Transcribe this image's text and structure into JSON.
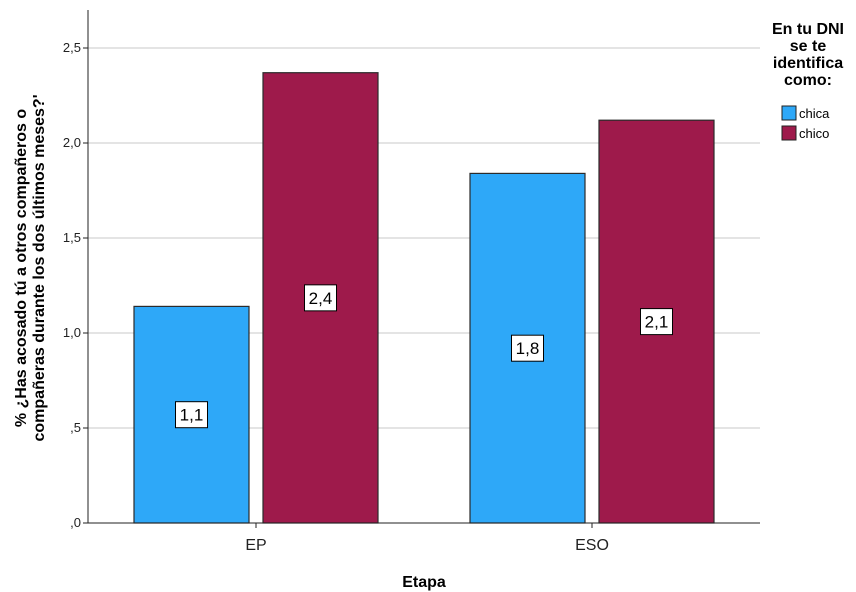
{
  "chart_data": {
    "type": "bar",
    "categories": [
      "EP",
      "ESO"
    ],
    "series": [
      {
        "name": "chica",
        "values": [
          1.14,
          1.84
        ],
        "labels": [
          "1,1",
          "1,8"
        ],
        "color": "#2EA8F8"
      },
      {
        "name": "chico",
        "values": [
          2.37,
          2.12
        ],
        "labels": [
          "2,4",
          "2,1"
        ],
        "color": "#9E1A4B"
      }
    ],
    "xlabel": "Etapa",
    "ylabel_lines": [
      "% ¿Has acosado tú a otros compañeros o",
      "compañeras durante los dos últimos meses?'"
    ],
    "ylim": [
      0,
      2.7
    ],
    "yticks": [
      0,
      0.5,
      1.0,
      1.5,
      2.0,
      2.5
    ],
    "ytick_labels": [
      ",0",
      ",5",
      "1,0",
      "1,5",
      "2,0",
      "2,5"
    ],
    "grid": true,
    "legend": {
      "title_lines": [
        "En tu DNI",
        "se te",
        "identifica",
        "como:"
      ],
      "position": "right"
    }
  }
}
